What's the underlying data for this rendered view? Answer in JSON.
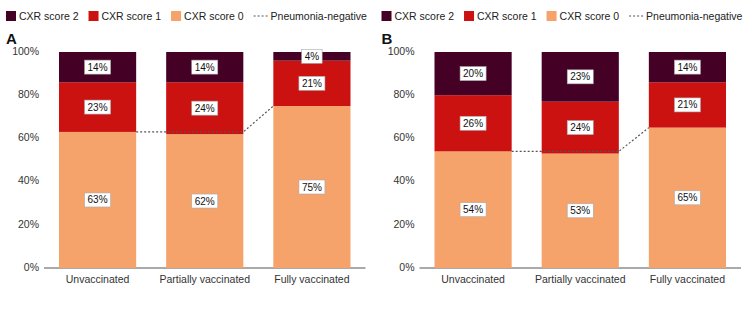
{
  "chart_data": [
    {
      "type": "bar",
      "title": "A",
      "stacked": true,
      "data_labels": true,
      "grid": false,
      "legend": "top",
      "categories": [
        "Unvaccinated",
        "Partially vaccinated",
        "Fully vaccinated"
      ],
      "series": [
        {
          "name": "CXR score 0",
          "color": "#F5A26B",
          "values": [
            63,
            62,
            75
          ],
          "value_labels": [
            "63%",
            "62%",
            "75%"
          ]
        },
        {
          "name": "CXR score 1",
          "color": "#CC1111",
          "values": [
            23,
            24,
            21
          ],
          "value_labels": [
            "23%",
            "24%",
            "21%"
          ]
        },
        {
          "name": "CXR score 2",
          "color": "#450025",
          "values": [
            14,
            14,
            4
          ],
          "value_labels": [
            "14%",
            "14%",
            "4%"
          ]
        },
        {
          "name": "Pneumonia-negative",
          "type": "line",
          "line_style": "dotted",
          "color": "#555555",
          "values": [
            63,
            63,
            75
          ]
        }
      ],
      "ylim": [
        0,
        100
      ],
      "yticks": [
        {
          "value": 0,
          "label": "0%"
        },
        {
          "value": 20,
          "label": "20%"
        },
        {
          "value": 40,
          "label": "40%"
        },
        {
          "value": 60,
          "label": "60%"
        },
        {
          "value": 80,
          "label": "80%"
        },
        {
          "value": 100,
          "label": "100%"
        }
      ]
    },
    {
      "type": "bar",
      "title": "B",
      "stacked": true,
      "data_labels": true,
      "grid": false,
      "legend": "top",
      "categories": [
        "Unvaccinated",
        "Partially vaccinated",
        "Fully vaccinated"
      ],
      "series": [
        {
          "name": "CXR score 0",
          "color": "#F5A26B",
          "values": [
            54,
            53,
            65
          ],
          "value_labels": [
            "54%",
            "53%",
            "65%"
          ]
        },
        {
          "name": "CXR score 1",
          "color": "#CC1111",
          "values": [
            26,
            24,
            21
          ],
          "value_labels": [
            "26%",
            "24%",
            "21%"
          ]
        },
        {
          "name": "CXR score 2",
          "color": "#450025",
          "values": [
            20,
            23,
            14
          ],
          "value_labels": [
            "20%",
            "23%",
            "14%"
          ]
        },
        {
          "name": "Pneumonia-negative",
          "type": "line",
          "line_style": "dotted",
          "color": "#555555",
          "values": [
            54,
            54,
            65
          ]
        }
      ],
      "ylim": [
        0,
        100
      ],
      "yticks": [
        {
          "value": 0,
          "label": "0%"
        },
        {
          "value": 20,
          "label": "20%"
        },
        {
          "value": 40,
          "label": "40%"
        },
        {
          "value": 60,
          "label": "60%"
        },
        {
          "value": 80,
          "label": "80%"
        },
        {
          "value": 100,
          "label": "100%"
        }
      ]
    }
  ]
}
